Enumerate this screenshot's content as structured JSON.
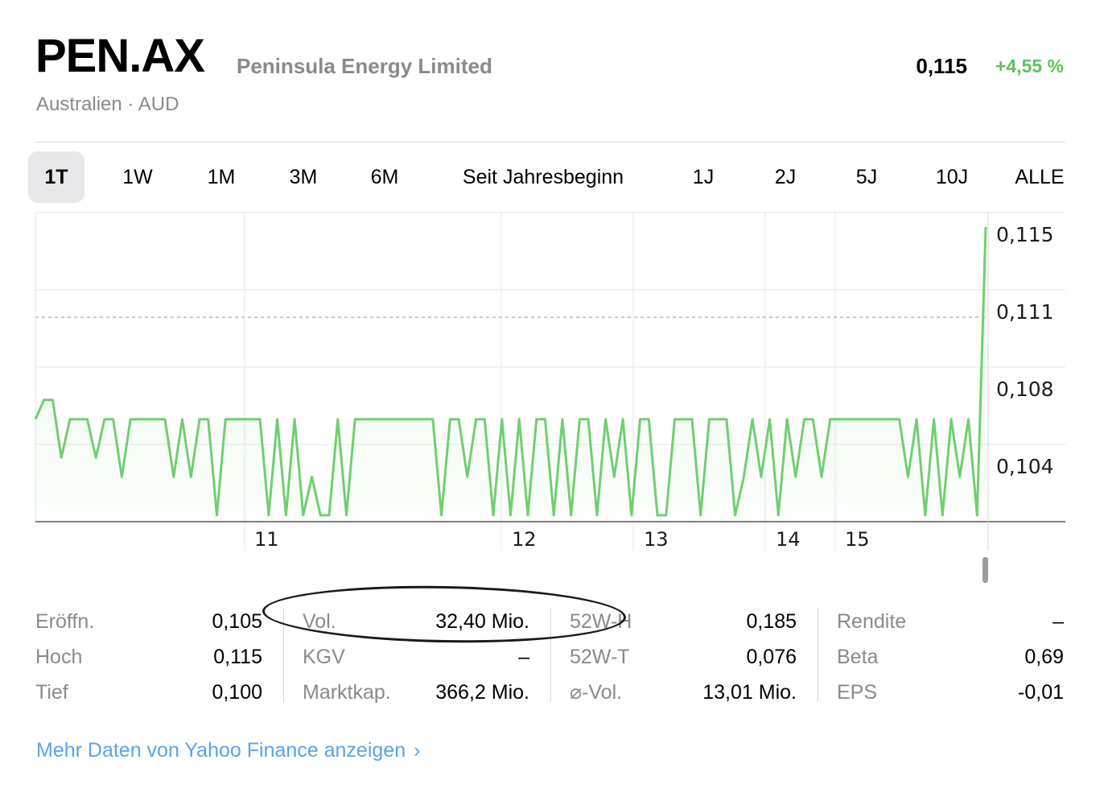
{
  "header": {
    "symbol": "PEN.AX",
    "company": "Peninsula Energy Limited",
    "meta": "Australien · AUD",
    "price": "0,115",
    "change": "+4,55 %"
  },
  "tabs": [
    {
      "label": "1T",
      "active": true
    },
    {
      "label": "1W"
    },
    {
      "label": "1M"
    },
    {
      "label": "3M"
    },
    {
      "label": "6M"
    },
    {
      "label": "Seit Jahresbeginn"
    },
    {
      "label": "1J"
    },
    {
      "label": "2J"
    },
    {
      "label": "5J"
    },
    {
      "label": "10J"
    },
    {
      "label": "ALLE"
    }
  ],
  "colors": {
    "accent_green": "#6fcf6f",
    "link_blue": "#5aa4e8",
    "label_gray": "#8a8a8e"
  },
  "chart_data": {
    "type": "line",
    "y_ticks": [
      "0,115",
      "0,111",
      "0,108",
      "0,104"
    ],
    "x_ticks": [
      "11",
      "12",
      "13",
      "14",
      "15"
    ],
    "ylim": [
      0.1,
      0.115
    ],
    "previous_close": 0.11,
    "grid": true,
    "series": [
      {
        "values": [
          0.105,
          0.106,
          0.106,
          0.103,
          0.105,
          0.105,
          0.105,
          0.103,
          0.105,
          0.105,
          0.102,
          0.105,
          0.105,
          0.105,
          0.105,
          0.105,
          0.102,
          0.105,
          0.102,
          0.105,
          0.105,
          0.1,
          0.105,
          0.105,
          0.105,
          0.105,
          0.105,
          0.1,
          0.105,
          0.1,
          0.105,
          0.1,
          0.102,
          0.1,
          0.1,
          0.105,
          0.1,
          0.105,
          0.105,
          0.105,
          0.105,
          0.105,
          0.105,
          0.105,
          0.105,
          0.105,
          0.105,
          0.1,
          0.105,
          0.105,
          0.102,
          0.105,
          0.105,
          0.1,
          0.105,
          0.1,
          0.105,
          0.1,
          0.105,
          0.105,
          0.1,
          0.105,
          0.1,
          0.105,
          0.105,
          0.1,
          0.105,
          0.102,
          0.105,
          0.1,
          0.105,
          0.105,
          0.1,
          0.1,
          0.105,
          0.105,
          0.105,
          0.1,
          0.105,
          0.105,
          0.105,
          0.1,
          0.102,
          0.105,
          0.102,
          0.105,
          0.1,
          0.105,
          0.102,
          0.105,
          0.105,
          0.102,
          0.105,
          0.105,
          0.105,
          0.105,
          0.105,
          0.105,
          0.105,
          0.105,
          0.105,
          0.102,
          0.105,
          0.1,
          0.105,
          0.1,
          0.105,
          0.102,
          0.105,
          0.1,
          0.115
        ]
      }
    ]
  },
  "stats": [
    [
      {
        "label": "Eröffn.",
        "value": "0,105"
      },
      {
        "label": "Hoch",
        "value": "0,115"
      },
      {
        "label": "Tief",
        "value": "0,100"
      }
    ],
    [
      {
        "label": "Vol.",
        "value": "32,40 Mio."
      },
      {
        "label": "KGV",
        "value": "–"
      },
      {
        "label": "Marktkap.",
        "value": "366,2 Mio."
      }
    ],
    [
      {
        "label": "52W-H",
        "value": "0,185"
      },
      {
        "label": "52W-T",
        "value": "0,076"
      },
      {
        "label": "⌀-Vol.",
        "value": "13,01 Mio."
      }
    ],
    [
      {
        "label": "Rendite",
        "value": "–"
      },
      {
        "label": "Beta",
        "value": "0,69"
      },
      {
        "label": "EPS",
        "value": "-0,01"
      }
    ]
  ],
  "link": {
    "label": "Mehr Daten von Yahoo Finance anzeigen",
    "chevron": "›"
  }
}
